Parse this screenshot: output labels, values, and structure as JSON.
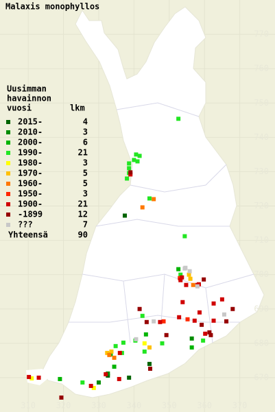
{
  "title": "Malaxis monophyllos",
  "legend": {
    "header": [
      "Uusimman",
      "havainnon",
      "vuosi"
    ],
    "count_header": "lkm",
    "items": [
      {
        "label": "2015-",
        "count": 4,
        "color": "#006400",
        "points": [
          [
            337.4,
            717.2
          ],
          [
            332.6,
            670.6
          ],
          [
            338.6,
            670.0
          ],
          [
            344.4,
            674.0
          ]
        ]
      },
      {
        "label": "2010-",
        "count": 3,
        "color": "#008c00",
        "points": [
          [
            330.0,
            668.6
          ],
          [
            356.4,
            681.4
          ],
          [
            332.6,
            671.2
          ]
        ]
      },
      {
        "label": "2000-",
        "count": 6,
        "color": "#00b400",
        "points": [
          [
            319.0,
            669.6
          ],
          [
            333.4,
            676.8
          ],
          [
            343.4,
            682.6
          ],
          [
            352.6,
            701.6
          ],
          [
            334.4,
            673.2
          ],
          [
            356.4,
            678.8
          ]
        ]
      },
      {
        "label": "1990-",
        "count": 21,
        "color": "#22e622",
        "points": [
          [
            352.6,
            745.4
          ],
          [
            340.6,
            735.0
          ],
          [
            341.6,
            734.6
          ],
          [
            340.0,
            733.4
          ],
          [
            338.6,
            732.4
          ],
          [
            341.0,
            733.0
          ],
          [
            338.6,
            731.0
          ],
          [
            338.6,
            729.6
          ],
          [
            338.0,
            728.0
          ],
          [
            344.4,
            722.2
          ],
          [
            354.4,
            711.2
          ],
          [
            342.4,
            688.0
          ],
          [
            340.4,
            680.8
          ],
          [
            334.8,
            679.2
          ],
          [
            336.6,
            677.2
          ],
          [
            325.4,
            668.6
          ],
          [
            343.0,
            677.6
          ],
          [
            337.0,
            680.2
          ],
          [
            348.0,
            680.0
          ],
          [
            359.6,
            680.8
          ],
          [
            353.2,
            700.0
          ]
        ]
      },
      {
        "label": "1980-",
        "count": 3,
        "color": "#ffff00",
        "points": [
          [
            311.0,
            669.8
          ],
          [
            328.6,
            667.0
          ],
          [
            343.0,
            680.0
          ]
        ]
      },
      {
        "label": "1970-",
        "count": 5,
        "color": "#ffc000",
        "points": [
          [
            344.4,
            678.8
          ],
          [
            355.6,
            700.0
          ],
          [
            356.0,
            698.8
          ],
          [
            332.4,
            677.2
          ],
          [
            333.6,
            677.6
          ]
        ]
      },
      {
        "label": "1960-",
        "count": 5,
        "color": "#ff7800",
        "points": [
          [
            333.0,
            676.6
          ],
          [
            345.6,
            722.0
          ],
          [
            342.4,
            719.6
          ],
          [
            334.4,
            675.8
          ],
          [
            356.8,
            697.0
          ]
        ]
      },
      {
        "label": "1950-",
        "count": 3,
        "color": "#ff2800",
        "points": [
          [
            355.2,
            687.0
          ],
          [
            348.4,
            686.4
          ],
          [
            353.0,
            699.0
          ]
        ]
      },
      {
        "label": "1900-",
        "count": 21,
        "color": "#d00000",
        "points": [
          [
            339.0,
            729.2
          ],
          [
            347.4,
            686.2
          ],
          [
            353.2,
            698.4
          ],
          [
            353.6,
            699.2
          ],
          [
            358.0,
            697.0
          ],
          [
            358.6,
            689.0
          ],
          [
            362.6,
            691.6
          ],
          [
            353.8,
            692.0
          ],
          [
            362.6,
            686.6
          ],
          [
            365.0,
            692.8
          ],
          [
            360.2,
            682.8
          ],
          [
            352.8,
            687.6
          ],
          [
            357.2,
            686.6
          ],
          [
            327.8,
            667.6
          ],
          [
            336.0,
            677.2
          ],
          [
            313.0,
            670.0
          ],
          [
            310.2,
            670.2
          ],
          [
            332.0,
            671.0
          ],
          [
            335.8,
            669.6
          ],
          [
            358.4,
            697.2
          ],
          [
            354.8,
            697.0
          ]
        ]
      },
      {
        "label": "-1899",
        "count": 12,
        "color": "#960000",
        "points": [
          [
            339.0,
            729.8
          ],
          [
            341.6,
            690.0
          ],
          [
            343.6,
            686.2
          ],
          [
            359.8,
            698.6
          ],
          [
            366.2,
            686.4
          ],
          [
            368.0,
            690.0
          ],
          [
            361.4,
            683.2
          ],
          [
            361.8,
            682.4
          ],
          [
            359.2,
            685.4
          ],
          [
            349.2,
            682.4
          ],
          [
            319.4,
            664.2
          ],
          [
            344.6,
            672.6
          ]
        ]
      },
      {
        "label": "???",
        "count": 7,
        "color": "#c8c8c8",
        "points": [
          [
            354.4,
            701.8
          ],
          [
            354.6,
            702.0
          ],
          [
            345.6,
            686.4
          ],
          [
            358.0,
            696.6
          ],
          [
            365.6,
            688.4
          ],
          [
            340.6,
            681.2
          ],
          [
            355.8,
            701.0
          ]
        ]
      }
    ],
    "total_label": "Yhteensä",
    "total": 90
  },
  "xlim": [
    302,
    380
  ],
  "ylim": [
    660,
    780
  ],
  "xticks": [
    310,
    320,
    330,
    340,
    350,
    360,
    370
  ],
  "yticks": [
    670,
    680,
    690,
    700,
    710,
    720,
    730,
    740,
    750,
    760,
    770
  ]
}
